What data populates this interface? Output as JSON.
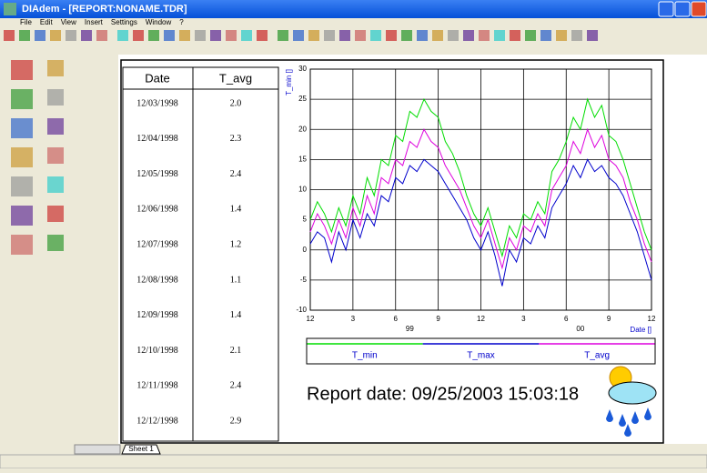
{
  "window": {
    "title": "DIAdem - [REPORT:NONAME.TDR]"
  },
  "menu": [
    "File",
    "Edit",
    "View",
    "Insert",
    "Settings",
    "Window",
    "?"
  ],
  "table": {
    "header": [
      "Date",
      "T_avg"
    ],
    "rows": [
      [
        "12/03/1998",
        "2.0"
      ],
      [
        "12/04/1998",
        "2.3"
      ],
      [
        "12/05/1998",
        "2.4"
      ],
      [
        "12/06/1998",
        "1.4"
      ],
      [
        "12/07/1998",
        "1.2"
      ],
      [
        "12/08/1998",
        "1.1"
      ],
      [
        "12/09/1998",
        "1.4"
      ],
      [
        "12/10/1998",
        "2.1"
      ],
      [
        "12/11/1998",
        "2.4"
      ],
      [
        "12/12/1998",
        "2.9"
      ]
    ]
  },
  "chart_data": {
    "type": "line",
    "ylabel": "T_min []",
    "xlabel": "Date []",
    "x": [
      0,
      0.5,
      1,
      1.5,
      2,
      2.5,
      3,
      3.5,
      4,
      4.5,
      5,
      5.5,
      6,
      6.5,
      7,
      7.5,
      8,
      8.5,
      9,
      9.5,
      10,
      10.5,
      11,
      11.5,
      12,
      12.5,
      13,
      13.5,
      14,
      14.5,
      15,
      15.5,
      16,
      16.5,
      17,
      17.5,
      18,
      18.5,
      19,
      19.5,
      20,
      20.5,
      21,
      21.5,
      22,
      22.5,
      23,
      23.5,
      24
    ],
    "series": [
      {
        "name": "T_min",
        "color": "#00dd00",
        "values": [
          5,
          8,
          6,
          3,
          7,
          4,
          9,
          6,
          12,
          9,
          15,
          14,
          19,
          18,
          23,
          22,
          25,
          23,
          22,
          18,
          16,
          13,
          9,
          6,
          4,
          7,
          3,
          -1,
          4,
          2,
          6,
          5,
          8,
          6,
          13,
          15,
          18,
          22,
          20,
          25,
          22,
          24,
          19,
          18,
          15,
          11,
          7,
          3,
          0
        ]
      },
      {
        "name": "T_max",
        "color": "#0000cc",
        "values": [
          1,
          3,
          2,
          -2,
          3,
          0,
          5,
          2,
          6,
          4,
          9,
          8,
          12,
          11,
          14,
          13,
          15,
          14,
          13,
          11,
          9,
          7,
          5,
          2,
          0,
          3,
          -1,
          -6,
          0,
          -2,
          2,
          1,
          4,
          2,
          7,
          9,
          11,
          14,
          12,
          15,
          13,
          14,
          12,
          11,
          9,
          6,
          3,
          -1,
          -5
        ]
      },
      {
        "name": "T_avg",
        "color": "#dd00dd",
        "values": [
          3,
          6,
          4,
          1,
          5,
          2,
          7,
          4,
          9,
          6,
          12,
          11,
          15,
          14,
          18,
          17,
          20,
          18,
          17,
          14,
          12,
          10,
          7,
          4,
          2,
          5,
          1,
          -3,
          2,
          0,
          4,
          3,
          6,
          4,
          10,
          12,
          14,
          18,
          16,
          20,
          17,
          19,
          15,
          14,
          12,
          8,
          5,
          1,
          -2
        ]
      }
    ],
    "xlim": [
      0,
      24
    ],
    "xticks": [
      {
        "value": 0,
        "label": "12"
      },
      3,
      6,
      9,
      {
        "value": 12,
        "label": "12"
      },
      {
        "value": 15,
        "label": "3"
      },
      {
        "value": 18,
        "label": "6"
      },
      {
        "value": 21,
        "label": "9"
      },
      {
        "value": 24,
        "label": "12"
      }
    ],
    "xyears": [
      {
        "value": 7,
        "label": "99"
      },
      {
        "value": 19,
        "label": "00"
      }
    ],
    "ylim": [
      -10,
      30
    ],
    "yticks": [
      -10,
      -5,
      0,
      5,
      10,
      15,
      20,
      25,
      30
    ],
    "grid": true
  },
  "report_date": "Report date: 09/25/2003 15:03:18",
  "sheet_tab": "Sheet 1"
}
